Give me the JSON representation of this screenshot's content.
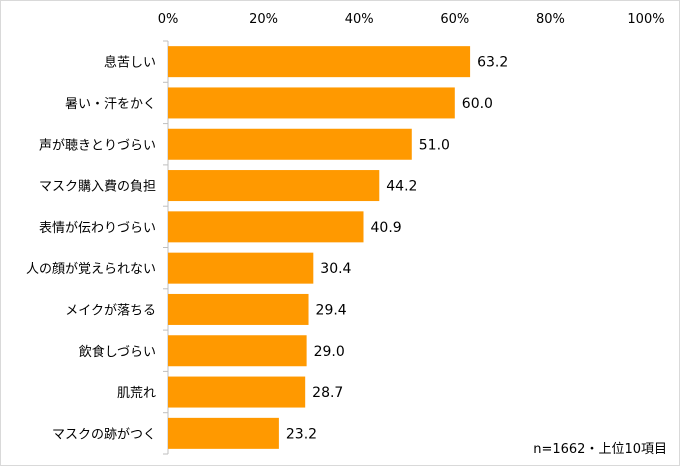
{
  "chart_data": {
    "type": "bar",
    "orientation": "horizontal",
    "categories": [
      "息苦しい",
      "暑い・汗をかく",
      "声が聴きとりづらい",
      "マスク購入費の負担",
      "表情が伝わりづらい",
      "人の顔が覚えられない",
      "メイクが落ちる",
      "飲食しづらい",
      "肌荒れ",
      "マスクの跡がつく"
    ],
    "values": [
      63.2,
      60.0,
      51.0,
      44.2,
      40.9,
      30.4,
      29.4,
      29.0,
      28.7,
      23.2
    ],
    "value_labels": [
      "63.2",
      "60.0",
      "51.0",
      "44.2",
      "40.9",
      "30.4",
      "29.4",
      "29.0",
      "28.7",
      "23.2"
    ],
    "x_ticks": [
      "0%",
      "20%",
      "40%",
      "60%",
      "80%",
      "100%"
    ],
    "xlim": [
      0,
      100
    ],
    "x_axis_position": "top",
    "grid": false,
    "bar_color": "#ff9900",
    "note": "n=1662・上位10項目"
  }
}
